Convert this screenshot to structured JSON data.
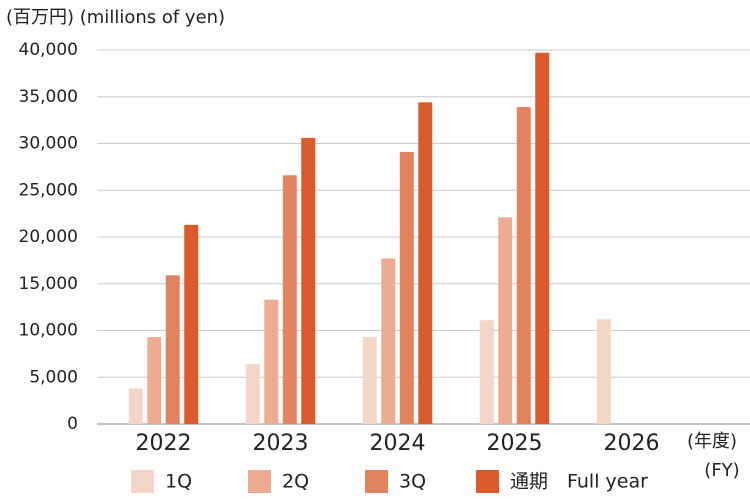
{
  "chart_data": {
    "type": "bar",
    "y_label": "(百万円) (millions of yen)",
    "x_label_lines": [
      "(年度)",
      "(FY)"
    ],
    "categories": [
      "2022",
      "2023",
      "2024",
      "2025",
      "2026"
    ],
    "series": [
      {
        "name": "1Q",
        "color": "#f5d5c8",
        "values": [
          3800,
          6400,
          9300,
          11100,
          11200
        ]
      },
      {
        "name": "2Q",
        "color": "#edac91",
        "values": [
          9300,
          13300,
          17700,
          22100,
          null
        ]
      },
      {
        "name": "3Q",
        "color": "#e3835e",
        "values": [
          15900,
          26600,
          29100,
          33900,
          null
        ]
      },
      {
        "name": "通期　Full year",
        "color": "#d95b2b",
        "values": [
          21300,
          30600,
          34400,
          39700,
          null
        ]
      }
    ],
    "ylim": [
      0,
      40000
    ],
    "yticks": [
      0,
      {
        "value": 5000,
        "label": "5,000"
      },
      {
        "value": 10000,
        "label": "10,000"
      },
      {
        "value": 15000,
        "label": "15,000"
      },
      {
        "value": 20000,
        "label": "20,000"
      },
      {
        "value": 25000,
        "label": "25,000"
      },
      {
        "value": 30000,
        "label": "30,000"
      },
      {
        "value": 35000,
        "label": "35,000"
      },
      {
        "value": 40000,
        "label": "40,000"
      }
    ],
    "grid": true
  }
}
